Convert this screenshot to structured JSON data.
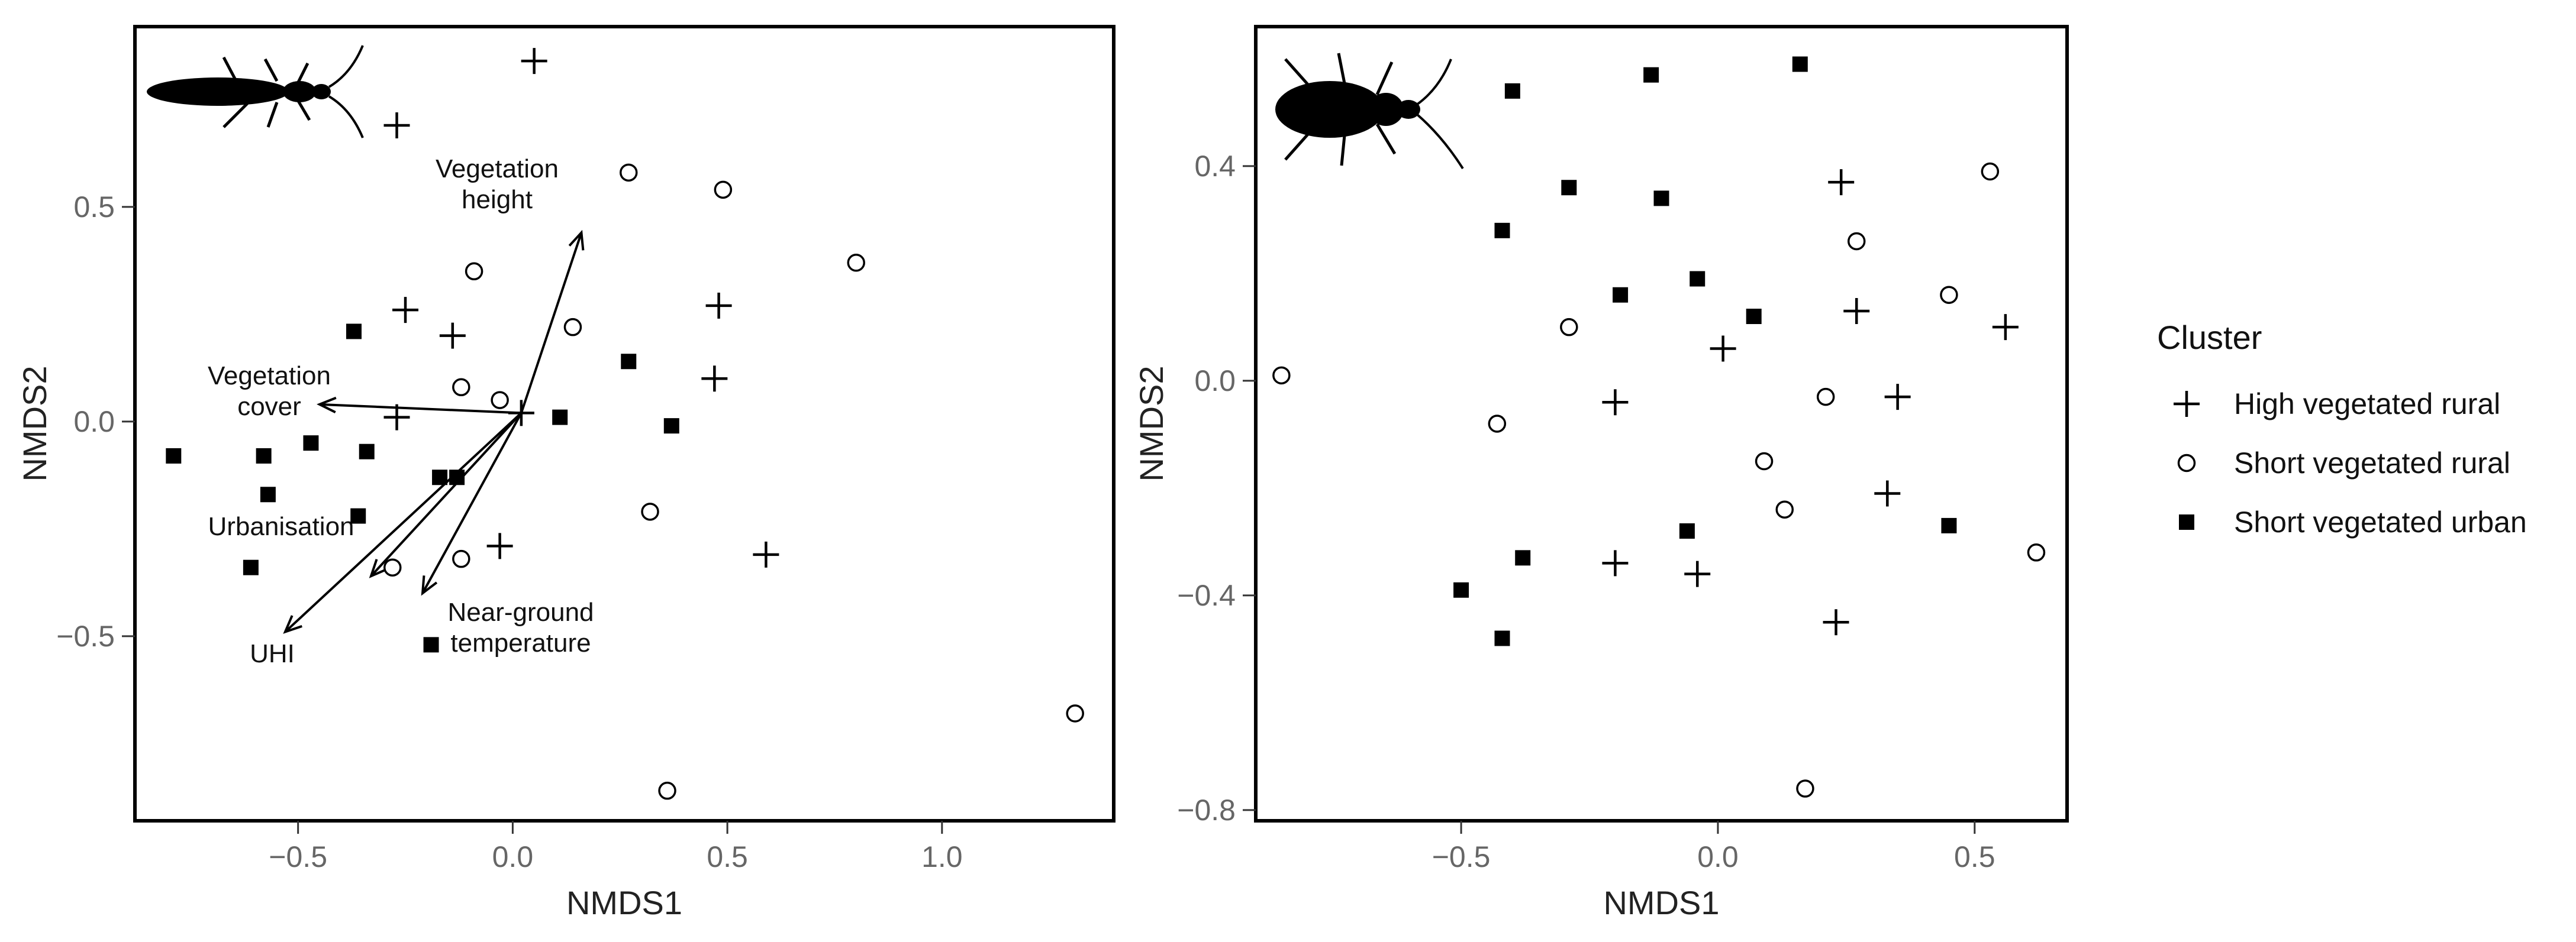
{
  "legend": {
    "title": "Cluster",
    "entries": [
      {
        "label": "High vegetated rural",
        "marker": "plus"
      },
      {
        "label": "Short vegetated rural",
        "marker": "circle"
      },
      {
        "label": "Short vegetated urban",
        "marker": "square"
      }
    ]
  },
  "chart_data": [
    {
      "type": "scatter",
      "title": "",
      "xlabel": "NMDS1",
      "ylabel": "NMDS2",
      "xlim": [
        -0.88,
        1.4
      ],
      "ylim": [
        -0.93,
        0.92
      ],
      "xticks": [
        -0.5,
        0.0,
        0.5,
        1.0
      ],
      "xtick_labels": [
        "−0.5",
        "0.0",
        "0.5",
        "1.0"
      ],
      "yticks": [
        -0.5,
        0.0,
        0.5
      ],
      "ytick_labels": [
        "−0.5",
        "0.0",
        "0.5"
      ],
      "icon": "longhorn-beetle-silhouette",
      "series": [
        {
          "name": "High vegetated rural",
          "marker": "plus",
          "points": [
            [
              0.05,
              0.84
            ],
            [
              -0.27,
              0.69
            ],
            [
              -0.25,
              0.26
            ],
            [
              -0.14,
              0.2
            ],
            [
              0.48,
              0.27
            ],
            [
              0.47,
              0.1
            ],
            [
              -0.27,
              0.01
            ],
            [
              0.02,
              0.02
            ],
            [
              -0.03,
              -0.29
            ],
            [
              0.59,
              -0.31
            ]
          ]
        },
        {
          "name": "Short vegetated rural",
          "marker": "circle",
          "points": [
            [
              0.27,
              0.58
            ],
            [
              0.49,
              0.54
            ],
            [
              0.8,
              0.37
            ],
            [
              -0.09,
              0.35
            ],
            [
              0.14,
              0.22
            ],
            [
              -0.12,
              0.08
            ],
            [
              -0.03,
              0.05
            ],
            [
              0.32,
              -0.21
            ],
            [
              -0.12,
              -0.32
            ],
            [
              -0.28,
              -0.34
            ],
            [
              1.31,
              -0.68
            ],
            [
              0.36,
              -0.86
            ]
          ]
        },
        {
          "name": "Short vegetated urban",
          "marker": "square",
          "points": [
            [
              -0.37,
              0.21
            ],
            [
              0.27,
              0.14
            ],
            [
              0.11,
              0.01
            ],
            [
              0.37,
              -0.01
            ],
            [
              -0.79,
              -0.08
            ],
            [
              -0.58,
              -0.08
            ],
            [
              -0.47,
              -0.05
            ],
            [
              -0.34,
              -0.07
            ],
            [
              -0.57,
              -0.17
            ],
            [
              -0.36,
              -0.22
            ],
            [
              -0.17,
              -0.13
            ],
            [
              -0.13,
              -0.13
            ],
            [
              -0.61,
              -0.34
            ],
            [
              -0.19,
              -0.52
            ]
          ]
        }
      ],
      "vectors": {
        "origin": [
          0.02,
          0.02
        ],
        "items": [
          {
            "label_lines": [
              "Vegetation",
              "height"
            ],
            "end": [
              0.16,
              0.44
            ]
          },
          {
            "label_lines": [
              "Vegetation",
              "cover"
            ],
            "end": [
              -0.45,
              0.04
            ]
          },
          {
            "label_lines": [
              "Urbanisation"
            ],
            "end": [
              -0.33,
              -0.36
            ]
          },
          {
            "label_lines": [
              "UHI"
            ],
            "end": [
              -0.53,
              -0.49
            ]
          },
          {
            "label_lines": [
              "Near-ground",
              "temperature"
            ],
            "end": [
              -0.21,
              -0.4
            ]
          }
        ]
      }
    },
    {
      "type": "scatter",
      "title": "",
      "xlabel": "NMDS1",
      "ylabel": "NMDS2",
      "xlim": [
        -0.9,
        0.68
      ],
      "ylim": [
        -0.82,
        0.66
      ],
      "xticks": [
        -0.5,
        0.0,
        0.5
      ],
      "xtick_labels": [
        "−0.5",
        "0.0",
        "0.5"
      ],
      "yticks": [
        -0.8,
        -0.4,
        0.0,
        0.4
      ],
      "ytick_labels": [
        "−0.8",
        "−0.4",
        "0.0",
        "0.4"
      ],
      "icon": "ground-beetle-silhouette",
      "series": [
        {
          "name": "High vegetated rural",
          "marker": "plus",
          "points": [
            [
              0.24,
              0.37
            ],
            [
              0.27,
              0.13
            ],
            [
              0.56,
              0.1
            ],
            [
              0.01,
              0.06
            ],
            [
              -0.2,
              -0.04
            ],
            [
              0.35,
              -0.03
            ],
            [
              0.33,
              -0.21
            ],
            [
              -0.2,
              -0.34
            ],
            [
              -0.04,
              -0.36
            ],
            [
              0.23,
              -0.45
            ]
          ]
        },
        {
          "name": "Short vegetated rural",
          "marker": "circle",
          "points": [
            [
              0.53,
              0.39
            ],
            [
              0.27,
              0.26
            ],
            [
              0.45,
              0.16
            ],
            [
              -0.29,
              0.1
            ],
            [
              -0.85,
              0.01
            ],
            [
              0.21,
              -0.03
            ],
            [
              -0.43,
              -0.08
            ],
            [
              0.09,
              -0.15
            ],
            [
              0.13,
              -0.24
            ],
            [
              0.62,
              -0.32
            ],
            [
              0.17,
              -0.76
            ]
          ]
        },
        {
          "name": "Short vegetated urban",
          "marker": "square",
          "points": [
            [
              0.16,
              0.59
            ],
            [
              -0.13,
              0.57
            ],
            [
              -0.4,
              0.54
            ],
            [
              -0.29,
              0.36
            ],
            [
              -0.11,
              0.34
            ],
            [
              -0.42,
              0.28
            ],
            [
              -0.04,
              0.19
            ],
            [
              -0.19,
              0.16
            ],
            [
              0.07,
              0.12
            ],
            [
              -0.06,
              -0.28
            ],
            [
              0.45,
              -0.27
            ],
            [
              -0.38,
              -0.33
            ],
            [
              -0.5,
              -0.39
            ],
            [
              -0.42,
              -0.48
            ]
          ]
        }
      ]
    }
  ]
}
